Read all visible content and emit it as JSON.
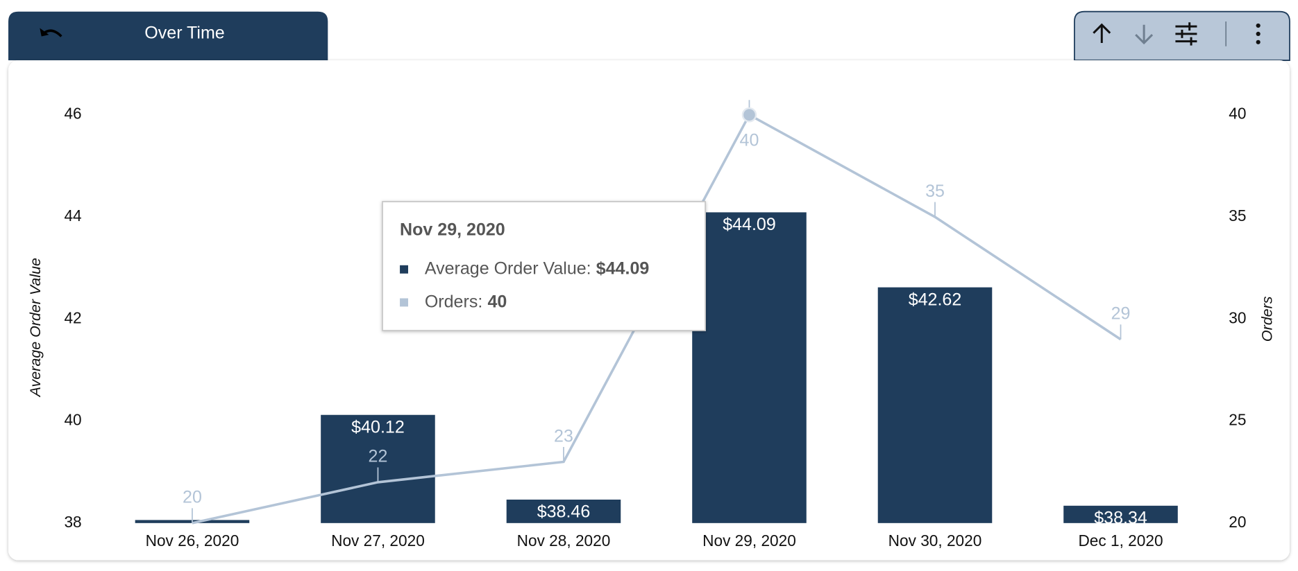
{
  "chart_data": {
    "type": "bar",
    "title": "Over Time",
    "categories": [
      "Nov 26, 2020",
      "Nov 27, 2020",
      "Nov 28, 2020",
      "Nov 29, 2020",
      "Nov 30, 2020",
      "Dec 1, 2020"
    ],
    "series": [
      {
        "name": "Average Order Value",
        "type": "bar",
        "color": "#1f3d5c",
        "values": [
          38.06,
          40.12,
          38.46,
          44.09,
          42.62,
          38.34
        ],
        "value_labels": [
          null,
          "$40.12",
          "$38.46",
          "$44.09",
          "$42.62",
          "$38.34"
        ]
      },
      {
        "name": "Orders",
        "type": "line",
        "axis": "y2",
        "color": "#b3c4d7",
        "values": [
          20,
          22,
          23,
          40,
          35,
          29
        ]
      }
    ],
    "ylim": [
      38,
      46
    ],
    "yticks": [
      38,
      40,
      42,
      44,
      46
    ],
    "y2lim": [
      20,
      40
    ],
    "y2ticks": [
      20,
      25,
      30,
      35,
      40
    ],
    "tooltip": {
      "title": "Nov 29, 2020",
      "items": [
        {
          "label": "Average Order Value:",
          "value": "$44.09",
          "color": "#1f3d5c"
        },
        {
          "label": "Orders:",
          "value": "40",
          "color": "#b3c4d7"
        }
      ]
    }
  }
}
